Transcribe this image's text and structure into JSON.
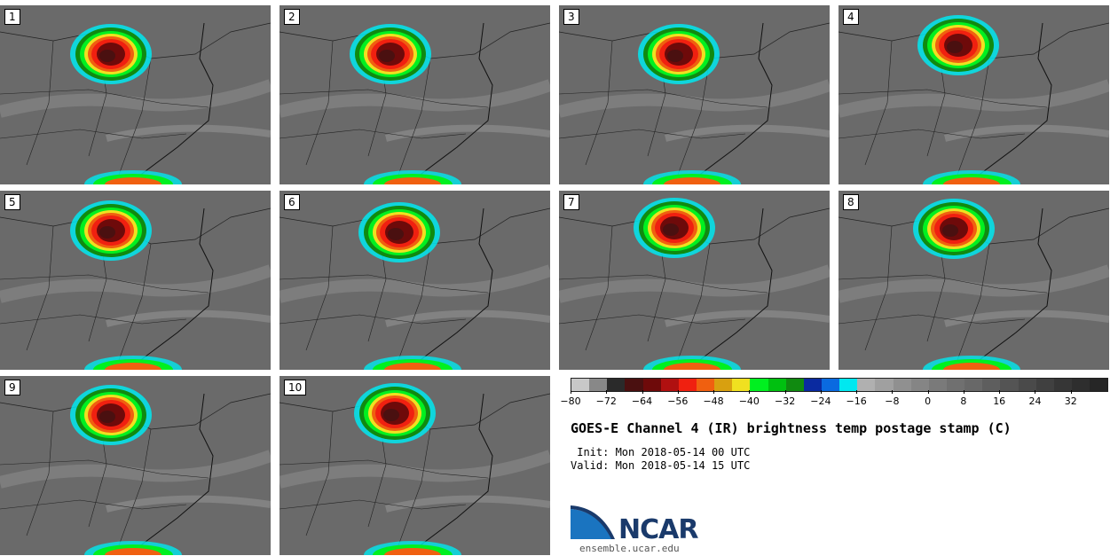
{
  "panels": [
    {
      "label": "1"
    },
    {
      "label": "2"
    },
    {
      "label": "3"
    },
    {
      "label": "4"
    },
    {
      "label": "5"
    },
    {
      "label": "6"
    },
    {
      "label": "7"
    },
    {
      "label": "8"
    },
    {
      "label": "9"
    },
    {
      "label": "10"
    }
  ],
  "colorbar": {
    "colors": [
      "#c8c8c8",
      "#888888",
      "#2a2a2a",
      "#4a1010",
      "#6e0a0a",
      "#b01010",
      "#f02010",
      "#f06010",
      "#d8a010",
      "#f0e020",
      "#00f020",
      "#00c010",
      "#108a10",
      "#0a2aa0",
      "#0a6ae0",
      "#00e8f0",
      "#b0b0b0",
      "#a0a0a0",
      "#909090",
      "#858585",
      "#7a7a7a",
      "#707070",
      "#686868",
      "#5e5e5e",
      "#545454",
      "#4a4a4a",
      "#404040",
      "#363636",
      "#2e2e2e",
      "#262626"
    ],
    "ticks": [
      "−80",
      "−72",
      "−64",
      "−56",
      "−48",
      "−40",
      "−32",
      "−24",
      "−16",
      "−8",
      "0",
      "8",
      "16",
      "24",
      "32"
    ]
  },
  "title": "GOES-E Channel 4 (IR) brightness temp postage stamp (C)",
  "init_line": " Init: Mon 2018-05-14 00 UTC",
  "valid_line": "Valid: Mon 2018-05-14 15 UTC",
  "logo": {
    "name": "NCAR",
    "url": "ensemble.ucar.edu",
    "color": "#1a3a6b"
  }
}
